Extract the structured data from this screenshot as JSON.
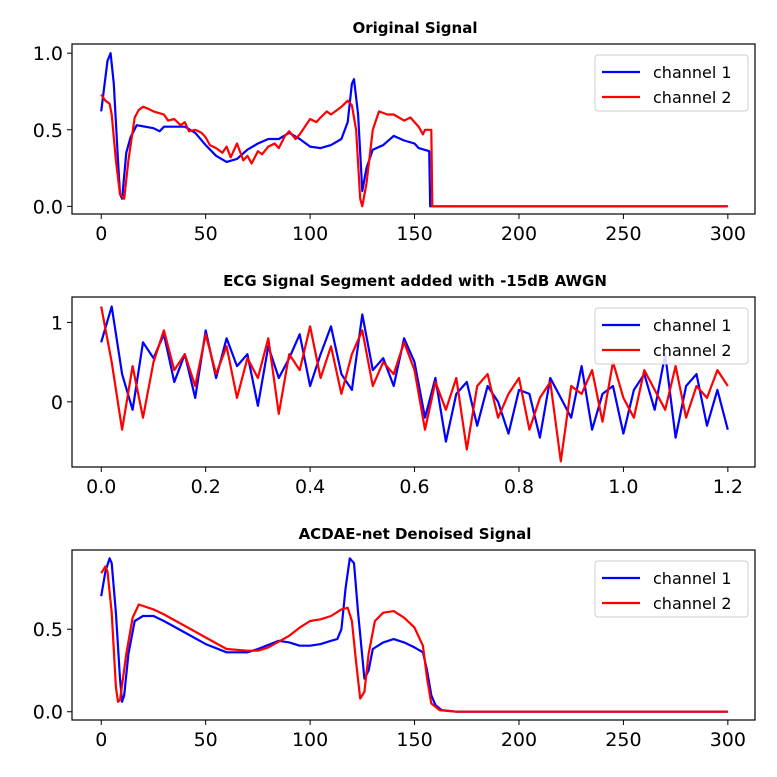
{
  "chart_data": [
    {
      "type": "line",
      "title": "Original Signal",
      "xlim": [
        -14,
        313
      ],
      "ylim": [
        -0.05,
        1.06
      ],
      "xticks": [
        0,
        50,
        100,
        150,
        200,
        250,
        300
      ],
      "xtick_labels": [
        "0",
        "50",
        "100",
        "150",
        "200",
        "250",
        "300"
      ],
      "yticks": [
        0,
        0.5,
        1.0
      ],
      "ytick_labels": [
        "0.0",
        "0.5",
        "1.0"
      ],
      "legend": "top-right",
      "grid": false,
      "series": [
        {
          "name": "channel 1",
          "color": "#0000ff",
          "x": [
            0,
            3,
            4.5,
            6,
            8,
            9,
            10,
            12,
            14,
            17,
            25,
            28,
            30,
            40,
            45,
            50,
            55,
            60,
            65,
            70,
            75,
            80,
            85,
            90,
            95,
            100,
            105,
            110,
            115,
            118,
            120,
            121,
            123,
            125,
            127,
            130,
            135,
            140,
            145,
            150,
            152,
            157,
            157.5,
            300
          ],
          "y": [
            0.62,
            0.95,
            1.0,
            0.8,
            0.3,
            0.08,
            0.05,
            0.35,
            0.45,
            0.53,
            0.51,
            0.49,
            0.52,
            0.52,
            0.48,
            0.4,
            0.33,
            0.29,
            0.31,
            0.37,
            0.41,
            0.44,
            0.44,
            0.48,
            0.44,
            0.39,
            0.38,
            0.4,
            0.44,
            0.55,
            0.8,
            0.83,
            0.6,
            0.1,
            0.25,
            0.37,
            0.4,
            0.46,
            0.43,
            0.41,
            0.38,
            0.36,
            0,
            0
          ]
        },
        {
          "name": "channel 2",
          "color": "#ff0000",
          "x": [
            0,
            2,
            4,
            5,
            7,
            9,
            11,
            13,
            16,
            18,
            20,
            22,
            25,
            30,
            32,
            35,
            38,
            40,
            42,
            45,
            48,
            50,
            52,
            55,
            58,
            60,
            62,
            65,
            68,
            70,
            72,
            75,
            77,
            80,
            83,
            85,
            88,
            90,
            93,
            95,
            100,
            103,
            105,
            108,
            110,
            115,
            118,
            120,
            122,
            124,
            125,
            127,
            130,
            133,
            137,
            140,
            145,
            148,
            150,
            152,
            154,
            155,
            158,
            158.5,
            300
          ],
          "y": [
            0.73,
            0.69,
            0.67,
            0.6,
            0.3,
            0.08,
            0.05,
            0.3,
            0.58,
            0.63,
            0.65,
            0.64,
            0.62,
            0.6,
            0.56,
            0.57,
            0.53,
            0.55,
            0.49,
            0.5,
            0.48,
            0.45,
            0.4,
            0.38,
            0.35,
            0.39,
            0.32,
            0.41,
            0.3,
            0.33,
            0.28,
            0.36,
            0.34,
            0.39,
            0.41,
            0.38,
            0.46,
            0.49,
            0.44,
            0.47,
            0.57,
            0.55,
            0.58,
            0.62,
            0.6,
            0.65,
            0.69,
            0.66,
            0.5,
            0.05,
            0.0,
            0.15,
            0.5,
            0.62,
            0.6,
            0.6,
            0.56,
            0.58,
            0.55,
            0.52,
            0.47,
            0.5,
            0.5,
            0,
            0
          ]
        }
      ]
    },
    {
      "type": "line",
      "title": "ECG Signal Segment added with -15dB AWGN",
      "xlim": [
        -0.056,
        1.252
      ],
      "ylim": [
        -0.82,
        1.32
      ],
      "xticks": [
        0,
        0.2,
        0.4,
        0.6,
        0.8,
        1.0,
        1.2
      ],
      "xtick_labels": [
        "0.0",
        "0.2",
        "0.4",
        "0.6",
        "0.8",
        "1.0",
        "1.2"
      ],
      "yticks": [
        0,
        1
      ],
      "ytick_labels": [
        "0",
        "1"
      ],
      "legend": "top-right",
      "grid": false,
      "x_step": 0.02,
      "series": [
        {
          "name": "channel 1",
          "color": "#0000ff",
          "y": [
            0.75,
            1.2,
            0.35,
            -0.1,
            0.75,
            0.55,
            0.85,
            0.25,
            0.6,
            0.05,
            0.9,
            0.3,
            0.8,
            0.45,
            0.6,
            -0.05,
            0.7,
            0.3,
            0.55,
            0.85,
            0.2,
            0.6,
            0.95,
            0.35,
            0.15,
            1.1,
            0.4,
            0.55,
            0.2,
            0.8,
            0.5,
            -0.2,
            0.3,
            -0.5,
            0.1,
            0.25,
            -0.3,
            0.2,
            0.0,
            -0.4,
            0.15,
            0.1,
            -0.45,
            0.3,
            0.05,
            -0.2,
            0.45,
            -0.35,
            0.1,
            0.2,
            -0.4,
            0.15,
            0.35,
            -0.1,
            0.6,
            -0.45,
            0.2,
            0.35,
            -0.3,
            0.15,
            -0.35
          ]
        },
        {
          "name": "channel 2",
          "color": "#ff0000",
          "y": [
            1.2,
            0.5,
            -0.35,
            0.45,
            -0.2,
            0.5,
            0.9,
            0.4,
            0.6,
            0.2,
            0.85,
            0.35,
            0.7,
            0.05,
            0.55,
            0.3,
            0.8,
            -0.15,
            0.6,
            0.4,
            0.95,
            0.3,
            0.7,
            0.1,
            0.6,
            0.9,
            0.2,
            0.5,
            0.35,
            0.75,
            0.4,
            -0.35,
            0.25,
            -0.1,
            0.3,
            -0.6,
            0.2,
            0.35,
            -0.2,
            0.1,
            0.3,
            -0.35,
            0.05,
            0.25,
            -0.75,
            0.2,
            0.1,
            0.4,
            -0.25,
            0.5,
            0.05,
            -0.2,
            0.4,
            0.15,
            -0.1,
            0.45,
            -0.2,
            0.2,
            0.05,
            0.4,
            0.2
          ]
        }
      ]
    },
    {
      "type": "line",
      "title": "ACDAE-net Denoised Signal",
      "xlim": [
        -14,
        313
      ],
      "ylim": [
        -0.05,
        0.98
      ],
      "xticks": [
        0,
        50,
        100,
        150,
        200,
        250,
        300
      ],
      "xtick_labels": [
        "0",
        "50",
        "100",
        "150",
        "200",
        "250",
        "300"
      ],
      "yticks": [
        0,
        0.5
      ],
      "ytick_labels": [
        "0.0",
        "0.5"
      ],
      "legend": "top-right",
      "grid": false,
      "series": [
        {
          "name": "channel 1",
          "color": "#0000ff",
          "x": [
            0,
            2,
            4,
            5,
            7,
            9,
            10,
            11,
            13,
            16,
            20,
            25,
            30,
            40,
            50,
            60,
            70,
            75,
            85,
            90,
            95,
            100,
            105,
            110,
            113,
            115,
            117,
            119,
            121,
            123,
            126,
            128,
            130,
            135,
            140,
            145,
            150,
            154,
            156,
            158,
            160,
            163,
            170,
            300
          ],
          "y": [
            0.7,
            0.85,
            0.93,
            0.9,
            0.6,
            0.2,
            0.06,
            0.1,
            0.35,
            0.55,
            0.58,
            0.58,
            0.55,
            0.48,
            0.41,
            0.36,
            0.36,
            0.38,
            0.43,
            0.42,
            0.4,
            0.4,
            0.41,
            0.43,
            0.44,
            0.5,
            0.75,
            0.93,
            0.9,
            0.6,
            0.2,
            0.25,
            0.38,
            0.42,
            0.44,
            0.42,
            0.39,
            0.36,
            0.25,
            0.1,
            0.04,
            0.01,
            0,
            0
          ]
        },
        {
          "name": "channel 2",
          "color": "#ff0000",
          "x": [
            0,
            1,
            2,
            3,
            5,
            7,
            8,
            9,
            12,
            15,
            18,
            25,
            30,
            40,
            50,
            60,
            70,
            75,
            80,
            90,
            95,
            100,
            105,
            110,
            115,
            118,
            120,
            122,
            124,
            126,
            128,
            131,
            135,
            140,
            145,
            150,
            154,
            156,
            158,
            162,
            170,
            300
          ],
          "y": [
            0.84,
            0.86,
            0.88,
            0.85,
            0.6,
            0.15,
            0.06,
            0.07,
            0.35,
            0.57,
            0.65,
            0.62,
            0.59,
            0.52,
            0.45,
            0.38,
            0.37,
            0.37,
            0.39,
            0.46,
            0.51,
            0.55,
            0.56,
            0.58,
            0.62,
            0.63,
            0.55,
            0.3,
            0.08,
            0.12,
            0.35,
            0.55,
            0.6,
            0.61,
            0.57,
            0.51,
            0.4,
            0.2,
            0.05,
            0.01,
            0,
            0
          ]
        }
      ]
    }
  ]
}
